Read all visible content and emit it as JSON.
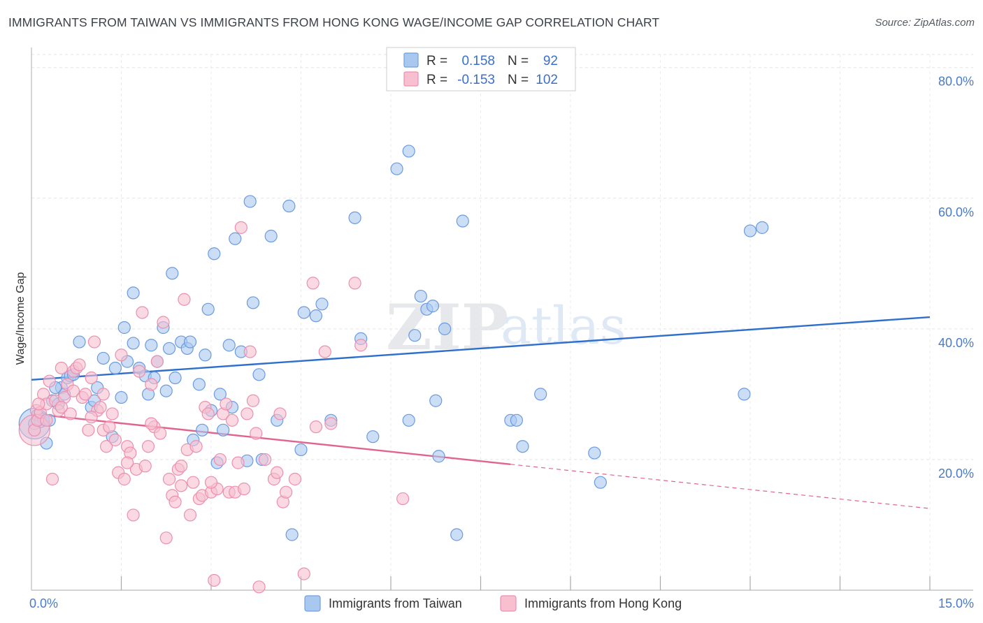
{
  "chart_data": {
    "type": "scatter",
    "title": "IMMIGRANTS FROM TAIWAN VS IMMIGRANTS FROM HONG KONG WAGE/INCOME GAP CORRELATION CHART",
    "source": "Source: ZipAtlas.com",
    "watermark": {
      "part1": "ZIP",
      "part2": "atlas"
    },
    "xlabel": "",
    "ylabel": "Wage/Income Gap",
    "xlim": [
      0,
      15
    ],
    "ylim": [
      0,
      82
    ],
    "x_tick_labels": [
      {
        "value": 0,
        "label": "0.0%"
      },
      {
        "value": 15,
        "label": "15.0%"
      }
    ],
    "x_minor_ticks": [
      1.5,
      3.0,
      4.5,
      6.0,
      7.5,
      9.0,
      10.5,
      12.0,
      13.5,
      15.0
    ],
    "y_ticks": [
      {
        "value": 80,
        "label": "80.0%"
      },
      {
        "value": 60,
        "label": "60.0%"
      },
      {
        "value": 40,
        "label": "40.0%"
      },
      {
        "value": 20,
        "label": "20.0%"
      }
    ],
    "grid": true,
    "legend": {
      "position": "top-center",
      "entries": [
        {
          "r_label": "R =",
          "r_value": "0.158",
          "n_label": "N =",
          "n_value": "92",
          "color": "#a9c8f0",
          "stroke": "#6f9fe0"
        },
        {
          "r_label": "R =",
          "r_value": "-0.153",
          "n_label": "N =",
          "n_value": "102",
          "color": "#f7bfd0",
          "stroke": "#ec8fae"
        }
      ]
    },
    "series": [
      {
        "name": "Immigrants from Taiwan",
        "color": "#a9c8f0",
        "stroke": "#6a9be0",
        "line_color": "#2f6fcc",
        "trend": {
          "x0": 0,
          "y0": 32.2,
          "x1": 15,
          "y1": 41.8,
          "solid_until": 15
        },
        "points": [
          [
            0.05,
            25.5
          ],
          [
            0.1,
            26.8
          ],
          [
            0.15,
            25.8
          ],
          [
            0.2,
            26.2
          ],
          [
            0.25,
            22.5
          ],
          [
            0.35,
            29.0
          ],
          [
            0.45,
            28.5
          ],
          [
            0.5,
            31.0
          ],
          [
            0.55,
            30.0
          ],
          [
            0.6,
            32.5
          ],
          [
            0.65,
            32.8
          ],
          [
            0.7,
            33.0
          ],
          [
            0.8,
            38.0
          ],
          [
            1.0,
            28.0
          ],
          [
            1.1,
            31.0
          ],
          [
            1.2,
            35.5
          ],
          [
            1.35,
            23.5
          ],
          [
            1.4,
            34.0
          ],
          [
            1.5,
            29.5
          ],
          [
            1.55,
            40.2
          ],
          [
            1.6,
            35.0
          ],
          [
            1.7,
            37.8
          ],
          [
            1.7,
            45.5
          ],
          [
            1.8,
            34.0
          ],
          [
            1.9,
            32.8
          ],
          [
            1.95,
            30.0
          ],
          [
            2.0,
            37.5
          ],
          [
            2.05,
            32.5
          ],
          [
            2.1,
            35.0
          ],
          [
            2.2,
            40.2
          ],
          [
            2.3,
            37.0
          ],
          [
            2.35,
            48.5
          ],
          [
            2.4,
            32.5
          ],
          [
            2.5,
            38.0
          ],
          [
            2.6,
            37.0
          ],
          [
            2.65,
            38.0
          ],
          [
            2.7,
            23.0
          ],
          [
            2.8,
            31.5
          ],
          [
            2.85,
            24.5
          ],
          [
            2.9,
            36.0
          ],
          [
            2.95,
            43.0
          ],
          [
            3.0,
            27.5
          ],
          [
            3.05,
            51.5
          ],
          [
            3.1,
            19.5
          ],
          [
            3.2,
            24.5
          ],
          [
            3.3,
            37.5
          ],
          [
            3.35,
            28.0
          ],
          [
            3.4,
            53.8
          ],
          [
            3.5,
            36.5
          ],
          [
            3.6,
            19.8
          ],
          [
            3.65,
            59.5
          ],
          [
            3.7,
            44.0
          ],
          [
            3.8,
            33.0
          ],
          [
            3.85,
            20.0
          ],
          [
            4.0,
            54.2
          ],
          [
            4.1,
            26.0
          ],
          [
            4.3,
            58.8
          ],
          [
            4.35,
            8.5
          ],
          [
            4.5,
            21.5
          ],
          [
            4.55,
            42.5
          ],
          [
            4.75,
            42.0
          ],
          [
            4.85,
            43.8
          ],
          [
            5.0,
            26.0
          ],
          [
            5.4,
            57.0
          ],
          [
            5.5,
            38.5
          ],
          [
            5.7,
            23.5
          ],
          [
            6.1,
            64.5
          ],
          [
            6.3,
            67.2
          ],
          [
            6.3,
            26.0
          ],
          [
            6.4,
            39.0
          ],
          [
            6.5,
            45.0
          ],
          [
            6.6,
            43.0
          ],
          [
            6.7,
            43.5
          ],
          [
            6.75,
            29.0
          ],
          [
            6.8,
            20.5
          ],
          [
            6.9,
            40.0
          ],
          [
            7.1,
            8.5
          ],
          [
            7.2,
            56.5
          ],
          [
            8.0,
            26.0
          ],
          [
            8.1,
            26.0
          ],
          [
            8.2,
            22.0
          ],
          [
            8.5,
            30.0
          ],
          [
            9.4,
            21.0
          ],
          [
            9.5,
            16.5
          ],
          [
            11.9,
            30.0
          ],
          [
            12.0,
            55.0
          ],
          [
            12.2,
            55.5
          ],
          [
            0.3,
            26.0
          ],
          [
            0.4,
            31.0
          ],
          [
            1.05,
            29.0
          ],
          [
            2.25,
            30.5
          ],
          [
            3.15,
            30.0
          ]
        ],
        "large_points": [
          [
            0.05,
            25.5,
            22
          ]
        ]
      },
      {
        "name": "Immigrants from Hong Kong",
        "color": "#f7bfd0",
        "stroke": "#ec8fae",
        "line_color": "#e0648f",
        "trend": {
          "x0": 0,
          "y0": 27.0,
          "x1": 15,
          "y1": 12.5,
          "solid_until": 8.0
        },
        "points": [
          [
            0.05,
            24.5
          ],
          [
            0.08,
            27.5
          ],
          [
            0.1,
            26.0
          ],
          [
            0.15,
            27.2
          ],
          [
            0.2,
            30.0
          ],
          [
            0.25,
            28.5
          ],
          [
            0.3,
            32.0
          ],
          [
            0.35,
            17.0
          ],
          [
            0.4,
            29.0
          ],
          [
            0.45,
            27.5
          ],
          [
            0.5,
            34.0
          ],
          [
            0.55,
            29.5
          ],
          [
            0.6,
            31.5
          ],
          [
            0.65,
            27.0
          ],
          [
            0.7,
            33.5
          ],
          [
            0.75,
            34.0
          ],
          [
            0.8,
            34.5
          ],
          [
            0.85,
            29.5
          ],
          [
            0.9,
            30.0
          ],
          [
            0.95,
            24.5
          ],
          [
            1.0,
            32.5
          ],
          [
            1.05,
            38.0
          ],
          [
            1.1,
            27.5
          ],
          [
            1.15,
            28.0
          ],
          [
            1.2,
            24.5
          ],
          [
            1.25,
            22.0
          ],
          [
            1.3,
            25.0
          ],
          [
            1.35,
            27.0
          ],
          [
            1.4,
            23.0
          ],
          [
            1.45,
            18.0
          ],
          [
            1.5,
            36.0
          ],
          [
            1.55,
            17.0
          ],
          [
            1.6,
            22.0
          ],
          [
            1.65,
            21.0
          ],
          [
            1.7,
            11.5
          ],
          [
            1.75,
            18.5
          ],
          [
            1.8,
            33.5
          ],
          [
            1.85,
            42.5
          ],
          [
            1.9,
            19.0
          ],
          [
            1.95,
            22.0
          ],
          [
            2.0,
            31.5
          ],
          [
            2.05,
            25.0
          ],
          [
            2.1,
            35.0
          ],
          [
            2.15,
            24.0
          ],
          [
            2.2,
            41.0
          ],
          [
            2.25,
            8.0
          ],
          [
            2.3,
            17.0
          ],
          [
            2.35,
            14.5
          ],
          [
            2.4,
            13.5
          ],
          [
            2.45,
            18.5
          ],
          [
            2.5,
            19.0
          ],
          [
            2.55,
            44.5
          ],
          [
            2.6,
            21.5
          ],
          [
            2.65,
            11.5
          ],
          [
            2.7,
            16.5
          ],
          [
            2.75,
            22.0
          ],
          [
            2.8,
            14.0
          ],
          [
            2.85,
            14.5
          ],
          [
            2.9,
            28.0
          ],
          [
            2.95,
            27.0
          ],
          [
            3.0,
            15.0
          ],
          [
            3.05,
            1.5
          ],
          [
            3.1,
            15.5
          ],
          [
            3.15,
            20.0
          ],
          [
            3.2,
            27.0
          ],
          [
            3.25,
            28.5
          ],
          [
            3.3,
            15.0
          ],
          [
            3.35,
            26.0
          ],
          [
            3.4,
            15.0
          ],
          [
            3.45,
            19.5
          ],
          [
            3.5,
            55.5
          ],
          [
            3.55,
            15.5
          ],
          [
            3.6,
            27.0
          ],
          [
            3.65,
            36.5
          ],
          [
            3.7,
            29.0
          ],
          [
            3.75,
            24.0
          ],
          [
            3.8,
            0.5
          ],
          [
            3.9,
            20.0
          ],
          [
            4.05,
            17.0
          ],
          [
            4.1,
            18.0
          ],
          [
            4.15,
            27.0
          ],
          [
            4.2,
            13.5
          ],
          [
            4.25,
            15.0
          ],
          [
            4.4,
            17.0
          ],
          [
            4.55,
            2.5
          ],
          [
            4.7,
            47.0
          ],
          [
            4.75,
            25.0
          ],
          [
            4.9,
            36.5
          ],
          [
            5.0,
            25.5
          ],
          [
            5.4,
            47.0
          ],
          [
            5.5,
            37.5
          ],
          [
            6.2,
            14.0
          ],
          [
            0.5,
            28.0
          ],
          [
            1.0,
            26.5
          ],
          [
            1.6,
            19.5
          ],
          [
            2.0,
            25.5
          ],
          [
            2.5,
            16.0
          ],
          [
            3.0,
            16.5
          ],
          [
            0.25,
            26.0
          ],
          [
            0.7,
            30.5
          ],
          [
            1.2,
            30.0
          ],
          [
            0.12,
            28.5
          ]
        ],
        "large_points": [
          [
            0.05,
            24.5,
            22
          ]
        ]
      }
    ]
  }
}
